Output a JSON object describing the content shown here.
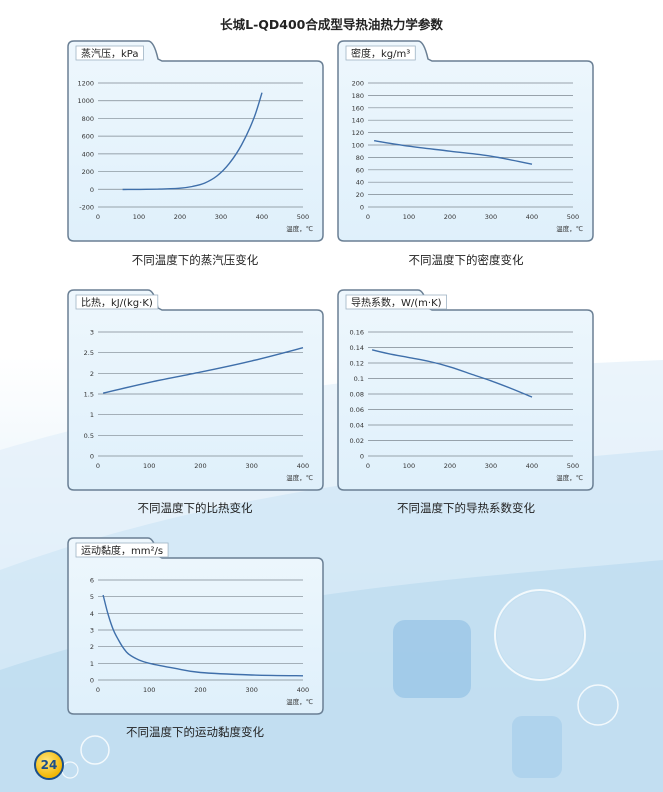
{
  "page": {
    "title": "长城L-QD400合成型导热油热力学参数",
    "page_number": "24"
  },
  "colors": {
    "line": "#3f6faa",
    "card_border": "#6a7f94",
    "card_bg": "#dff0fb"
  },
  "x_axis_unit": "温度，℃",
  "chart_data": [
    {
      "id": "vapor",
      "type": "line",
      "title": "蒸汽压，kPa",
      "caption": "不同温度下的蒸汽压变化",
      "x_ticks": [
        "0",
        "100",
        "200",
        "300",
        "400",
        "500"
      ],
      "y_ticks": [
        "-200",
        "0",
        "200",
        "400",
        "600",
        "800",
        "1000",
        "1200"
      ],
      "xlim": [
        0,
        500
      ],
      "ylim": [
        -200,
        1200
      ],
      "x": [
        60,
        100,
        150,
        200,
        230,
        260,
        290,
        320,
        350,
        380,
        400
      ],
      "y": [
        -2,
        -1,
        2,
        12,
        32,
        70,
        150,
        290,
        500,
        800,
        1090
      ]
    },
    {
      "id": "density",
      "type": "line",
      "title": "密度，kg/m³",
      "caption": "不同温度下的密度变化",
      "x_ticks": [
        "0",
        "100",
        "200",
        "300",
        "400",
        "500"
      ],
      "y_ticks": [
        "0",
        "20",
        "40",
        "60",
        "80",
        "100",
        "120",
        "140",
        "160",
        "180",
        "200"
      ],
      "xlim": [
        0,
        500
      ],
      "ylim": [
        0,
        200
      ],
      "x": [
        15,
        100,
        200,
        300,
        400
      ],
      "y": [
        107,
        98,
        90,
        82,
        69
      ]
    },
    {
      "id": "specific_heat",
      "type": "line",
      "title": "比热，kJ/(kg·K)",
      "caption": "不同温度下的比热变化",
      "x_ticks": [
        "0",
        "100",
        "200",
        "300",
        "400"
      ],
      "y_ticks": [
        "0",
        "0.5",
        "1",
        "1.5",
        "2",
        "2.5",
        "3"
      ],
      "xlim": [
        0,
        400
      ],
      "ylim": [
        0,
        3
      ],
      "x": [
        10,
        100,
        200,
        300,
        400
      ],
      "y": [
        1.52,
        1.78,
        2.03,
        2.3,
        2.62
      ]
    },
    {
      "id": "conductivity",
      "type": "line",
      "title": "导热系数，W/(m·K)",
      "caption": "不同温度下的导热系数变化",
      "x_ticks": [
        "0",
        "100",
        "200",
        "300",
        "400",
        "500"
      ],
      "y_ticks": [
        "0",
        "0.02",
        "0.04",
        "0.06",
        "0.08",
        "0.1",
        "0.12",
        "0.14",
        "0.16"
      ],
      "xlim": [
        0,
        500
      ],
      "ylim": [
        0,
        0.16
      ],
      "x": [
        10,
        50,
        100,
        150,
        200,
        250,
        300,
        350,
        400
      ],
      "y": [
        0.137,
        0.132,
        0.127,
        0.122,
        0.115,
        0.106,
        0.097,
        0.087,
        0.076
      ]
    },
    {
      "id": "viscosity",
      "type": "line",
      "title": "运动黏度，mm²/s",
      "caption": "不同温度下的运动黏度变化",
      "x_ticks": [
        "0",
        "100",
        "200",
        "300",
        "400"
      ],
      "y_ticks": [
        "0",
        "1",
        "2",
        "3",
        "4",
        "5",
        "6"
      ],
      "xlim": [
        0,
        400
      ],
      "ylim": [
        0,
        6
      ],
      "x": [
        10,
        20,
        30,
        40,
        50,
        60,
        80,
        100,
        150,
        200,
        300,
        400
      ],
      "y": [
        5.1,
        3.9,
        3.0,
        2.4,
        1.9,
        1.55,
        1.2,
        1.0,
        0.7,
        0.45,
        0.3,
        0.25
      ]
    }
  ]
}
